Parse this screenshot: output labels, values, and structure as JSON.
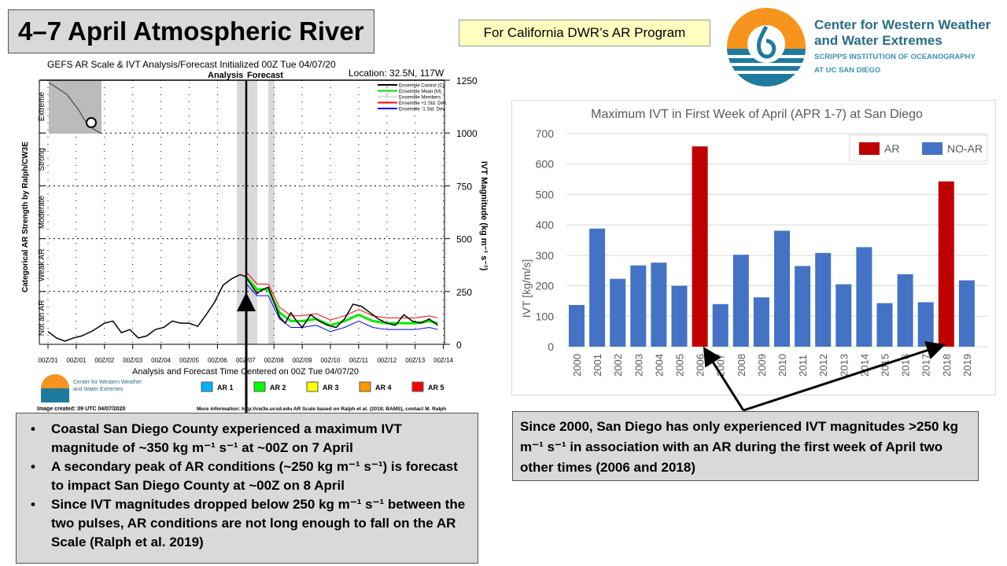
{
  "title": "4–7 April Atmospheric River",
  "subtitle_box": "For California DWR’s AR Program",
  "org": {
    "line1": "Center for Western Weather",
    "line2": "and Water Extremes",
    "line3": "SCRIPPS INSTITUTION OF OCEANOGRAPHY",
    "line4": "AT UC SAN DIEGO"
  },
  "left_figure": {
    "title": "GEFS AR Scale & IVT Analysis/Forecast Initialized 00Z Tue 04/07/20",
    "analysis_label": "Analysis",
    "forecast_label": "Forecast",
    "location": "Location: 32.5N, 117W",
    "left_axis_label": "Categorical AR Strength by Ralph/CW3E",
    "right_axis_label": "IVT Magnitude (kg m⁻¹ s⁻¹)",
    "categories": [
      "Not an AR",
      "Weak AR",
      "Moderate",
      "Strong",
      "Extreme"
    ],
    "xlabel": "Analysis and Forecast Time Centered on 00Z Tue 04/07/20",
    "legend": [
      "Ensemble Control (C)",
      "Ensemble Mean (M)",
      "Ensemble Members",
      "Ensemble +1 Std. Dev.",
      "Ensemble -1 Std. Dev."
    ],
    "ar_legend": [
      {
        "label": "AR 1",
        "color": "#00b4ff"
      },
      {
        "label": "AR 2",
        "color": "#00ff00"
      },
      {
        "label": "AR 3",
        "color": "#ffff00"
      },
      {
        "label": "AR 4",
        "color": "#ff9900"
      },
      {
        "label": "AR 5",
        "color": "#ff0000"
      }
    ],
    "logo_text": [
      "Center for Western Weather",
      "and Water Extremes"
    ],
    "created": "Image created: 09 UTC 04/07/2020",
    "more_info": "More information: http://cw3e.ucsd.edu  AR Scale based on Ralph et al. (2019; BAMS), contact M. Ralph"
  },
  "bullets": [
    "Coastal San Diego County experienced a maximum IVT magnitude of ~350 kg m⁻¹ s⁻¹ at ~00Z on 7 April",
    "A secondary peak of AR conditions (~250 kg m⁻¹ s⁻¹) is forecast to impact San Diego County at ~00Z on 8 April",
    "Since IVT magnitudes dropped below 250 kg m⁻¹ s⁻¹ between the two pulses, AR conditions are not long enough to fall on the AR Scale (Ralph et al. 2019)"
  ],
  "right_note": "Since 2000, San Diego has only experienced IVT magnitudes >250 kg m⁻¹ s⁻¹ in association with an AR during the first week of April two other times (2006 and 2018)",
  "chart_data": [
    {
      "type": "line",
      "title": "GEFS AR Scale & IVT Analysis/Forecast",
      "ylabel": "IVT Magnitude (kg m-1 s-1)",
      "ylim": [
        0,
        1250
      ],
      "yticks": [
        0,
        250,
        500,
        750,
        1000,
        1250
      ],
      "xticks": [
        "00Z/31",
        "00Z/01",
        "00Z/02",
        "00Z/03",
        "00Z/04",
        "00Z/05",
        "00Z/06",
        "00Z/07",
        "00Z/08",
        "00Z/09",
        "00Z/10",
        "00Z/11",
        "00Z/12",
        "00Z/13",
        "00Z/14"
      ],
      "series": [
        {
          "name": "Ensemble Control (C)",
          "color": "#000000",
          "x_days": [
            0,
            0.3,
            0.6,
            0.9,
            1.2,
            1.6,
            2,
            2.3,
            2.6,
            2.9,
            3.2,
            3.5,
            3.8,
            4.1,
            4.4,
            4.7,
            5,
            5.3,
            5.6,
            5.9,
            6.2,
            6.5,
            6.8,
            7,
            7.2,
            7.4,
            7.6,
            7.8,
            8,
            8.2,
            8.4,
            8.6,
            8.8,
            9,
            9.3,
            9.6,
            9.9,
            10.2,
            10.5,
            10.8,
            11.1,
            11.4,
            11.7,
            12,
            12.3,
            12.6,
            12.9,
            13.2,
            13.5,
            13.8
          ],
          "values": [
            60,
            30,
            15,
            30,
            40,
            65,
            100,
            110,
            55,
            70,
            30,
            40,
            70,
            80,
            110,
            100,
            100,
            85,
            140,
            200,
            280,
            310,
            330,
            320,
            280,
            240,
            260,
            270,
            200,
            130,
            100,
            150,
            110,
            80,
            140,
            110,
            90,
            80,
            120,
            190,
            180,
            150,
            120,
            100,
            90,
            140,
            110,
            100,
            120,
            90
          ]
        },
        {
          "name": "Ensemble Mean (M)",
          "color": "#00ee00",
          "x_days": [
            7,
            7.4,
            7.8,
            8.2,
            8.6,
            9,
            9.5,
            10,
            10.5,
            11,
            11.5,
            12,
            12.5,
            13,
            13.5,
            13.8
          ],
          "values": [
            320,
            260,
            260,
            150,
            110,
            110,
            120,
            90,
            110,
            140,
            110,
            100,
            100,
            100,
            110,
            100
          ]
        }
      ]
    },
    {
      "type": "bar",
      "title": "Maximum IVT in First Week of April (APR 1-7) at San Diego",
      "ylabel": "IVT [kg/m/s]",
      "xlabel": "",
      "ylim": [
        0,
        700
      ],
      "yticks": [
        0,
        100,
        200,
        300,
        400,
        500,
        600,
        700
      ],
      "categories": [
        "2000",
        "2001",
        "2002",
        "2003",
        "2004",
        "2005",
        "2006",
        "2007",
        "2008",
        "2009",
        "2010",
        "2011",
        "2012",
        "2013",
        "2014",
        "2015",
        "2016",
        "2017",
        "2018",
        "2019"
      ],
      "values": [
        137,
        388,
        223,
        267,
        276,
        200,
        658,
        140,
        302,
        162,
        381,
        265,
        308,
        205,
        327,
        143,
        238,
        146,
        543,
        218
      ],
      "is_ar": [
        false,
        false,
        false,
        false,
        false,
        false,
        true,
        false,
        false,
        false,
        false,
        false,
        false,
        false,
        false,
        false,
        false,
        false,
        true,
        false
      ],
      "legend": [
        {
          "label": "AR",
          "color": "#c00000"
        },
        {
          "label": "NO-AR",
          "color": "#4472c4"
        }
      ],
      "legend_position": "top-right"
    }
  ]
}
